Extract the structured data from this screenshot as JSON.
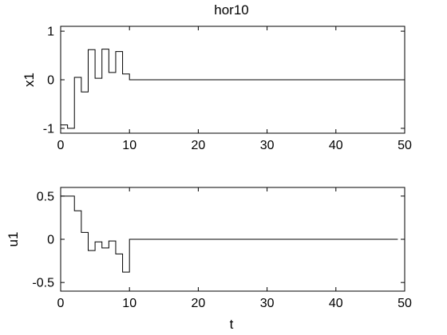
{
  "chart_data": [
    {
      "type": "line",
      "title": "hor10",
      "xlabel": "",
      "ylabel": "x1",
      "xlim": [
        0,
        50
      ],
      "ylim": [
        -1.1,
        1.1
      ],
      "xticks": [
        0,
        10,
        20,
        30,
        40,
        50
      ],
      "yticks": [
        -1,
        0,
        1
      ],
      "xtick_labels": [
        "0",
        "10",
        "20",
        "30",
        "40",
        "50"
      ],
      "ytick_labels": [
        "-1",
        "0",
        "1"
      ],
      "grid": false,
      "step": "post",
      "series": [
        {
          "x": [
            0,
            1,
            2,
            3,
            4,
            5,
            6,
            7,
            8,
            9,
            10,
            50
          ],
          "y": [
            -0.93,
            -1.0,
            0.05,
            -0.25,
            0.62,
            0.03,
            0.63,
            0.15,
            0.58,
            0.12,
            0.0,
            0.0
          ]
        }
      ]
    },
    {
      "type": "line",
      "title": "",
      "xlabel": "t",
      "ylabel": "u1",
      "xlim": [
        0,
        50
      ],
      "ylim": [
        -0.6,
        0.6
      ],
      "xticks": [
        0,
        10,
        20,
        30,
        40,
        50
      ],
      "yticks": [
        -0.5,
        0,
        0.5
      ],
      "xtick_labels": [
        "0",
        "10",
        "20",
        "30",
        "40",
        "50"
      ],
      "ytick_labels": [
        "-0.5",
        "0",
        "0.5"
      ],
      "grid": false,
      "step": "post",
      "series": [
        {
          "x": [
            0,
            2,
            3,
            4,
            5,
            6,
            7,
            8,
            9,
            10,
            49
          ],
          "y": [
            0.5,
            0.33,
            0.08,
            -0.13,
            -0.03,
            -0.1,
            -0.02,
            -0.17,
            -0.38,
            0.0,
            0.0
          ]
        }
      ]
    }
  ]
}
